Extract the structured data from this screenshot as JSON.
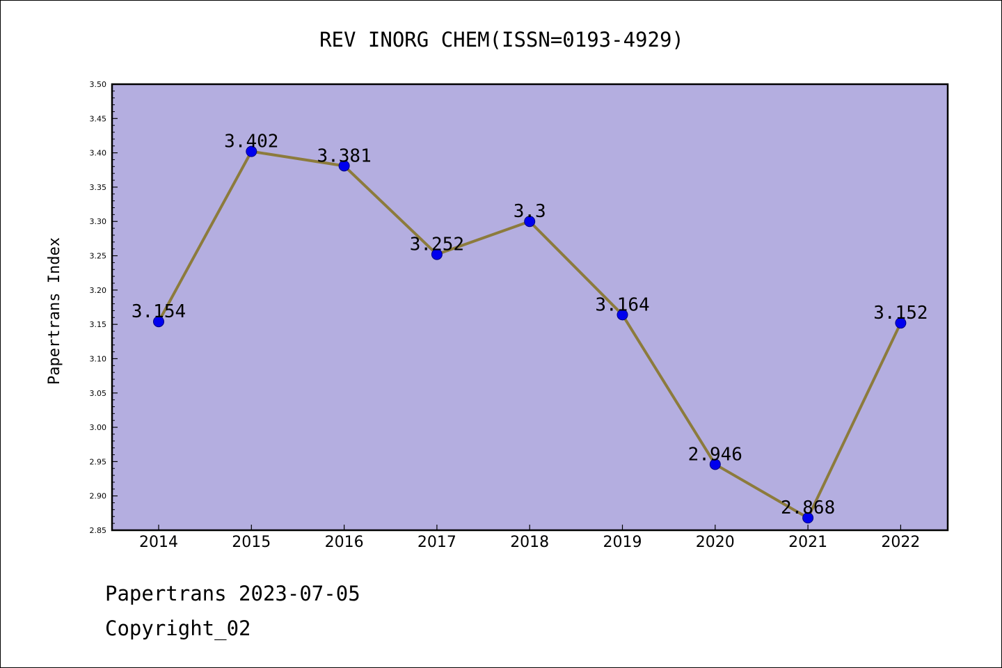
{
  "colors": {
    "plot_background": "#b4aee0",
    "line": "#8c7b3c",
    "marker_fill": "#0000ee",
    "marker_stroke": "#000080"
  },
  "footer": {
    "source_line": "Papertrans 2023-07-05",
    "copyright_line": "Copyright_02"
  },
  "chart_data": {
    "type": "line",
    "title": "REV INORG CHEM(ISSN=0193-4929)",
    "xlabel": "",
    "ylabel": "Papertrans Index",
    "categories": [
      "2014",
      "2015",
      "2016",
      "2017",
      "2018",
      "2019",
      "2020",
      "2021",
      "2022"
    ],
    "values": [
      3.154,
      3.402,
      3.381,
      3.252,
      3.3,
      3.164,
      2.946,
      2.868,
      3.152
    ],
    "data_labels": [
      "3.154",
      "3.402",
      "3.381",
      "3.252",
      "3.3",
      "3.164",
      "2.946",
      "2.868",
      "3.152"
    ],
    "ylim": [
      2.85,
      3.5
    ],
    "y_ticks": [
      "2.85",
      "2.90",
      "2.95",
      "3.00",
      "3.05",
      "3.10",
      "3.15",
      "3.20",
      "3.25",
      "3.30",
      "3.35",
      "3.40",
      "3.45",
      "3.50"
    ],
    "grid": false,
    "legend": "none"
  }
}
